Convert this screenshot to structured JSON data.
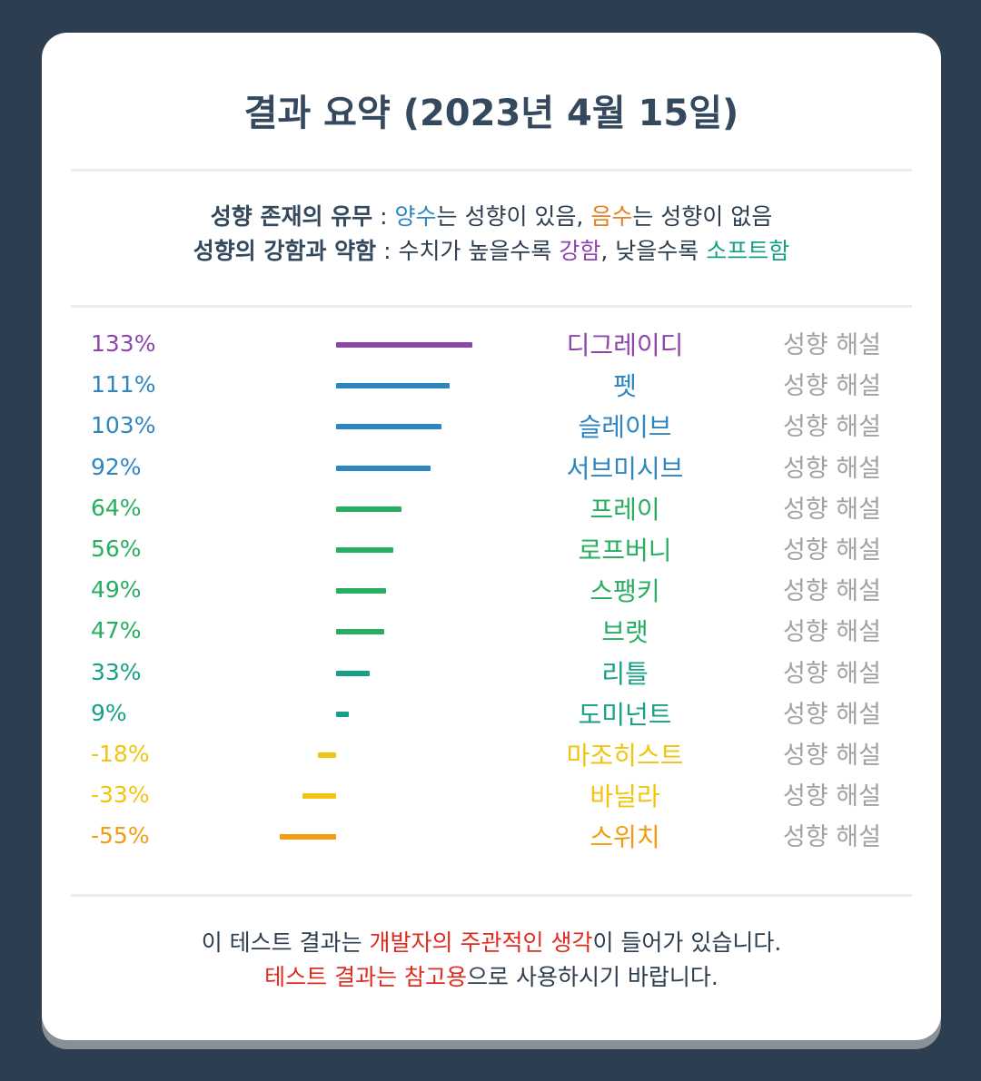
{
  "title": "결과 요약 (2023년 4월 15일)",
  "legend": {
    "line1": {
      "label": "성향 존재의 유무",
      "sep": " : ",
      "pos": "양수",
      "t1": "는 성향이 있음, ",
      "neg": "음수",
      "t2": "는 성향이 없음"
    },
    "line2": {
      "label": "성향의 강함과 약함",
      "sep": " : ",
      "t1": "수치가 높을수록 ",
      "strong": "강함",
      "t2": ", 낮을수록 ",
      "soft": "소프트함"
    }
  },
  "rows": [
    {
      "pct": "133%",
      "value": 133,
      "name": "디그레이디",
      "color": "#8e44ad",
      "action": "성향 해설"
    },
    {
      "pct": "111%",
      "value": 111,
      "name": "펫",
      "color": "#2e86c1",
      "action": "성향 해설"
    },
    {
      "pct": "103%",
      "value": 103,
      "name": "슬레이브",
      "color": "#2e86c1",
      "action": "성향 해설"
    },
    {
      "pct": "92%",
      "value": 92,
      "name": "서브미시브",
      "color": "#2e86c1",
      "action": "성향 해설"
    },
    {
      "pct": "64%",
      "value": 64,
      "name": "프레이",
      "color": "#27ae60",
      "action": "성향 해설"
    },
    {
      "pct": "56%",
      "value": 56,
      "name": "로프버니",
      "color": "#27ae60",
      "action": "성향 해설"
    },
    {
      "pct": "49%",
      "value": 49,
      "name": "스팽키",
      "color": "#27ae60",
      "action": "성향 해설"
    },
    {
      "pct": "47%",
      "value": 47,
      "name": "브랫",
      "color": "#27ae60",
      "action": "성향 해설"
    },
    {
      "pct": "33%",
      "value": 33,
      "name": "리틀",
      "color": "#16a085",
      "action": "성향 해설"
    },
    {
      "pct": "9%",
      "value": 9,
      "name": "도미넌트",
      "color": "#16a085",
      "action": "성향 해설"
    },
    {
      "pct": "-18%",
      "value": -18,
      "name": "마조히스트",
      "color": "#f1c40f",
      "action": "성향 해설"
    },
    {
      "pct": "-33%",
      "value": -33,
      "name": "바닐라",
      "color": "#f1c40f",
      "action": "성향 해설"
    },
    {
      "pct": "-55%",
      "value": -55,
      "name": "스위치",
      "color": "#f39c12",
      "action": "성향 해설"
    }
  ],
  "footer": {
    "line1": {
      "t1": "이 테스트 결과는 ",
      "red": "개발자의 주관적인 생각",
      "t2": "이 들어가 있습니다."
    },
    "line2": {
      "red": "테스트 결과는 참고용",
      "t1": "으로 사용하시기 바랍니다."
    }
  }
}
